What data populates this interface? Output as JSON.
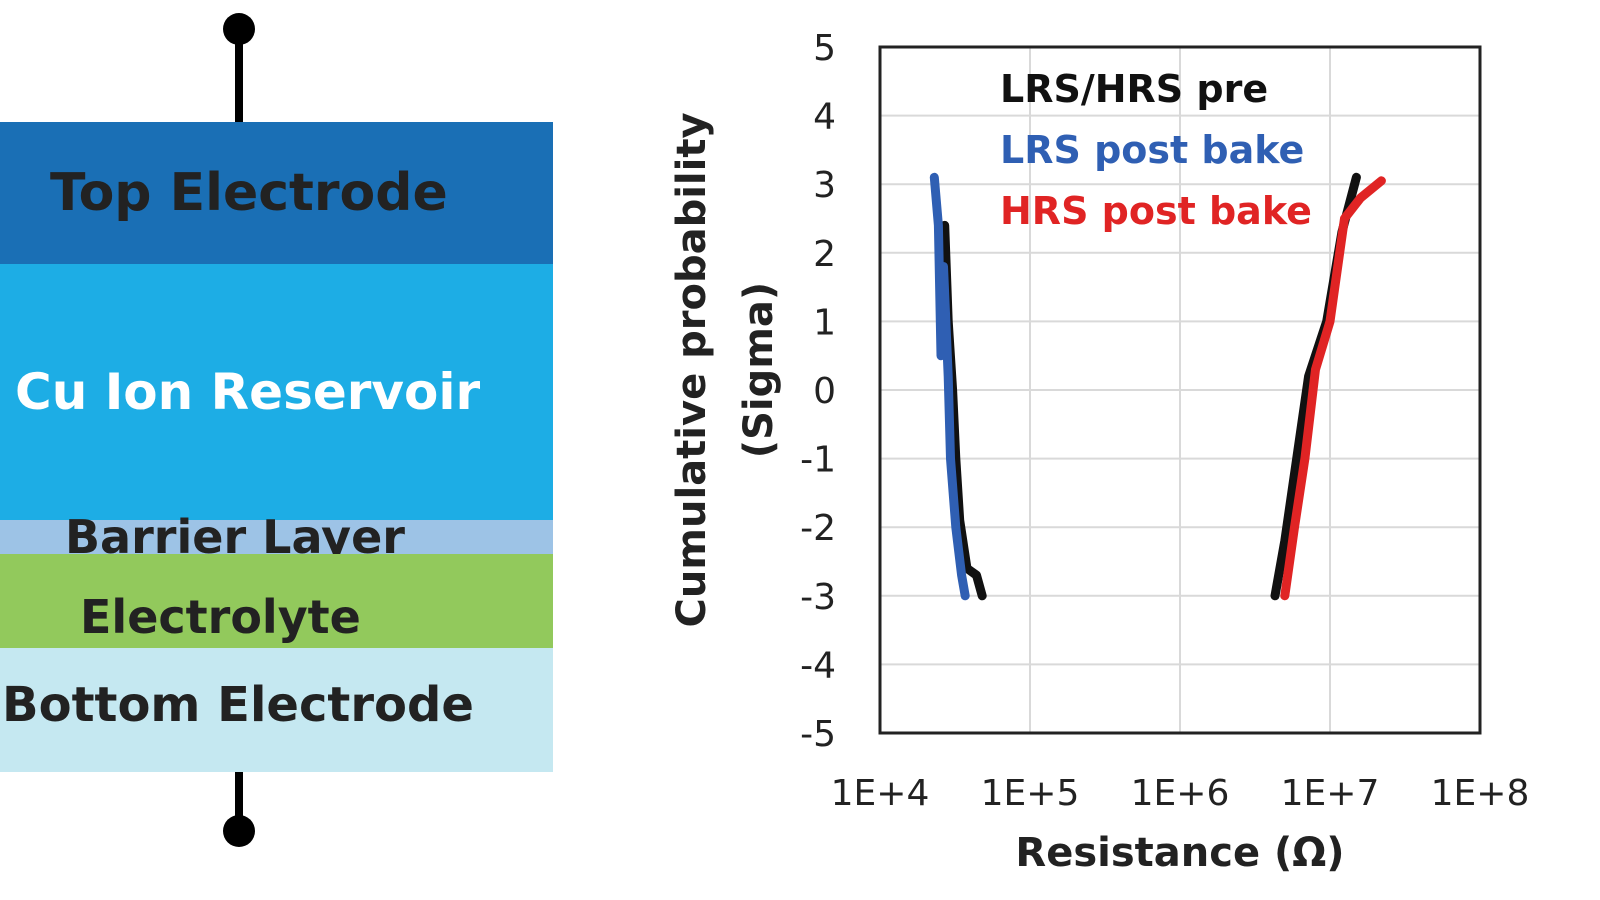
{
  "device": {
    "layers": [
      {
        "label": "Top Electrode",
        "color": "#1a6fb5",
        "text_color": "#222222"
      },
      {
        "label": "Cu Ion Reservoir",
        "color": "#1dade5",
        "text_color": "#ffffff"
      },
      {
        "label": "Barrier Layer",
        "color": "#9dc3e6",
        "text_color": "#222222"
      },
      {
        "label": "Electrolyte",
        "color": "#92c95c",
        "text_color": "#222222"
      },
      {
        "label": "Bottom Electrode",
        "color": "#c5e8f1",
        "text_color": "#222222"
      }
    ]
  },
  "chart_data": {
    "type": "line",
    "title": "",
    "xlabel": "Resistance (Ω)",
    "ylabel": "Cumulative probability (Sigma)",
    "ylabel_lines": [
      "Cumulative probability",
      "(Sigma)"
    ],
    "x_scale": "log",
    "xlim": [
      10000,
      100000000
    ],
    "ylim": [
      -5,
      5
    ],
    "x_ticks": [
      {
        "value": 10000,
        "label": "1E+4"
      },
      {
        "value": 100000,
        "label": "1E+5"
      },
      {
        "value": 1000000,
        "label": "1E+6"
      },
      {
        "value": 10000000,
        "label": "1E+7"
      },
      {
        "value": 100000000,
        "label": "1E+8"
      }
    ],
    "y_ticks": [
      5,
      4,
      3,
      2,
      1,
      0,
      -1,
      -2,
      -3,
      -4,
      -5
    ],
    "grid": true,
    "legend_position": "top-left-inside",
    "legend": [
      {
        "label": "LRS/HRS pre",
        "color": "#111111"
      },
      {
        "label": "LRS post bake",
        "color": "#2f5fb3"
      },
      {
        "label": "HRS post bake",
        "color": "#e02424"
      }
    ],
    "series": [
      {
        "color": "#111111",
        "points": [
          [
            27000,
            2.4
          ],
          [
            28500,
            1.0
          ],
          [
            30500,
            0
          ],
          [
            32000,
            -1
          ],
          [
            34000,
            -1.9
          ],
          [
            38000,
            -2.6
          ],
          [
            44000,
            -2.7
          ],
          [
            48000,
            -3.0
          ]
        ]
      },
      {
        "color": "#2f5fb3",
        "points": [
          [
            23000,
            3.1
          ],
          [
            24500,
            2.4
          ],
          [
            25500,
            0.5
          ],
          [
            26500,
            1.8
          ],
          [
            28500,
            0.2
          ],
          [
            29500,
            -1.0
          ],
          [
            32000,
            -2.0
          ],
          [
            35000,
            -2.7
          ],
          [
            37000,
            -3.0
          ]
        ]
      },
      {
        "color": "#111111",
        "points": [
          [
            4300000,
            -3.0
          ],
          [
            5000000,
            -2.2
          ],
          [
            6000000,
            -1.0
          ],
          [
            7200000,
            0.2
          ],
          [
            9500000,
            1.0
          ],
          [
            12000000,
            2.3
          ],
          [
            15000000,
            3.1
          ]
        ]
      },
      {
        "color": "#e02424",
        "points": [
          [
            5000000,
            -3.0
          ],
          [
            5800000,
            -2.0
          ],
          [
            6800000,
            -1.0
          ],
          [
            8000000,
            0.3
          ],
          [
            10000000,
            1.0
          ],
          [
            12500000,
            2.5
          ],
          [
            16000000,
            2.8
          ],
          [
            22000000,
            3.05
          ]
        ]
      }
    ]
  }
}
